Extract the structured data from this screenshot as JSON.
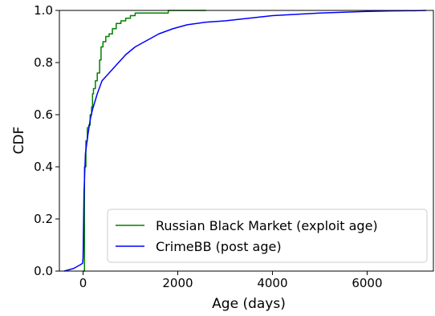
{
  "chart_data": {
    "type": "line",
    "title": "",
    "xlabel": "Age (days)",
    "ylabel": "CDF",
    "xlim": [
      -500,
      7400
    ],
    "ylim": [
      0.0,
      1.0
    ],
    "x_ticks": [
      0,
      2000,
      4000,
      6000
    ],
    "x_tick_labels": [
      "0",
      "2000",
      "4000",
      "6000"
    ],
    "y_ticks": [
      0.0,
      0.2,
      0.4,
      0.6,
      0.8,
      1.0
    ],
    "y_tick_labels": [
      "0.0",
      "0.2",
      "0.4",
      "0.6",
      "0.8",
      "1.0"
    ],
    "grid": false,
    "legend_position": "lower-right",
    "series": [
      {
        "name": "Russian Black Market (exploit age)",
        "color": "#008000",
        "style": "step",
        "x": [
          0,
          30,
          60,
          90,
          120,
          150,
          180,
          200,
          220,
          260,
          300,
          350,
          380,
          420,
          480,
          550,
          620,
          700,
          800,
          900,
          1000,
          1100,
          1300,
          1500,
          1800,
          2000,
          2600
        ],
        "y": [
          0.0,
          0.4,
          0.5,
          0.55,
          0.56,
          0.6,
          0.63,
          0.68,
          0.7,
          0.73,
          0.76,
          0.81,
          0.86,
          0.88,
          0.9,
          0.91,
          0.93,
          0.95,
          0.96,
          0.97,
          0.98,
          0.99,
          0.99,
          0.99,
          1.0,
          1.0,
          1.0
        ]
      },
      {
        "name": "CrimeBB (post age)",
        "color": "#0000ff",
        "style": "line",
        "x": [
          -400,
          -300,
          -200,
          -150,
          -100,
          -50,
          -10,
          0,
          20,
          50,
          100,
          150,
          200,
          300,
          400,
          500,
          700,
          900,
          1100,
          1300,
          1600,
          1900,
          2200,
          2600,
          3000,
          3500,
          4000,
          4500,
          5000,
          5500,
          6000,
          6500,
          7000,
          7250
        ],
        "y": [
          0.0,
          0.005,
          0.01,
          0.015,
          0.02,
          0.025,
          0.03,
          0.05,
          0.3,
          0.45,
          0.52,
          0.58,
          0.62,
          0.68,
          0.73,
          0.75,
          0.79,
          0.83,
          0.86,
          0.88,
          0.91,
          0.93,
          0.945,
          0.955,
          0.96,
          0.97,
          0.98,
          0.985,
          0.99,
          0.993,
          0.996,
          0.998,
          0.999,
          1.0
        ]
      }
    ]
  }
}
